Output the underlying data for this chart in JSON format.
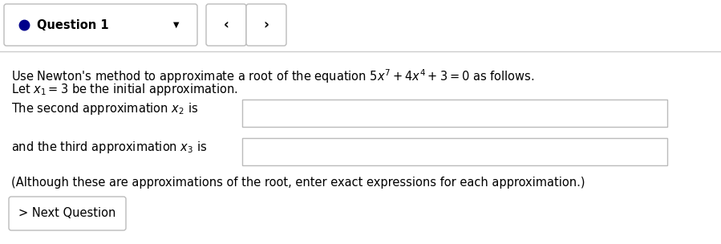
{
  "bg_color": "#ffffff",
  "text_color": "#000000",
  "question_label": "Question 1",
  "nav_left": "‹",
  "nav_right": "›",
  "dot_color": "#00008b",
  "font_size_main": 10.5,
  "font_size_header": 10.5,
  "separator_color": "#cccccc",
  "box_edge_color": "#bbbbbb"
}
